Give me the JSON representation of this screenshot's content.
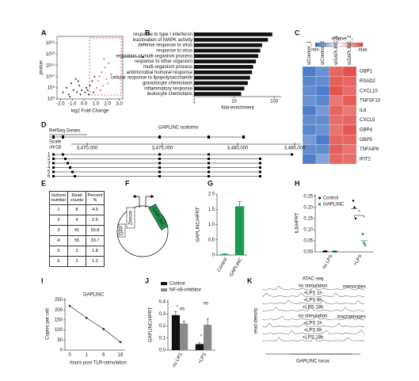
{
  "panel_labels": [
    "A",
    "B",
    "C",
    "D",
    "E",
    "F",
    "G",
    "H",
    "I",
    "J",
    "K"
  ],
  "chart_data": [
    {
      "type": "scatter",
      "xlabel": "log2 Fold-Change",
      "ylabel": "pvalue",
      "log_y": true,
      "xlim": [
        -2.3,
        3.3
      ],
      "xticks": [
        {
          "value": -2,
          "label": "-2.0"
        },
        {
          "value": -1,
          "label": "-1.0"
        },
        {
          "value": 0,
          "label": "0.0"
        },
        {
          "value": 1,
          "label": "1.0"
        },
        {
          "value": 2,
          "label": "2.0"
        },
        {
          "value": 3,
          "label": "3.0"
        }
      ],
      "ylim": [
        1,
        1e+28
      ],
      "yticks": [
        {
          "value": 1,
          "label": "10⁰"
        },
        {
          "value": 100000,
          "label": "10⁵"
        },
        {
          "value": 10000000000.0,
          "label": "10¹⁰"
        },
        {
          "value": 1000000000000000.0,
          "label": "10¹⁵"
        },
        {
          "value": 1e+20,
          "label": "10²⁰"
        },
        {
          "value": 1e+25,
          "label": "10²⁵"
        }
      ],
      "series": [
        {
          "color": "#222222",
          "x": [
            -1.8,
            -1.5,
            -1.3,
            -1.1,
            -0.9,
            -0.7,
            -0.6,
            -0.4,
            -0.3,
            -0.2,
            0.1,
            0.2,
            0.4,
            0.5,
            0.7,
            0.8,
            0.9,
            -1.2,
            -0.5,
            0.3
          ],
          "y": [
            1000,
            100000,
            100,
            10000000.0,
            10000,
            1000000000.0,
            1000,
            1000000.0,
            100,
            10000,
            1000,
            100000,
            100,
            1000000.0,
            100000000.0,
            1000,
            10000000000.0,
            10,
            100000000.0,
            10000
          ]
        },
        {
          "color": "#e0605a",
          "x": [
            1.1,
            1.2,
            1.3,
            1.5,
            1.6,
            1.8,
            1.9,
            2.1,
            2.3,
            1.4,
            1.7,
            2.0
          ],
          "y": [
            100000,
            100000000.0,
            10000000000.0,
            1000000000000.0,
            1000000.0,
            100000000000000.0,
            1000000000.0,
            1e+16,
            100000000000.0,
            10000,
            1e+18,
            10000000.0
          ]
        }
      ]
    },
    {
      "type": "hbar",
      "xlabel": "fold-enrichment",
      "log_x": true,
      "color": "#111111",
      "categories": [
        "response to type I interferon",
        "inactivation of MAPK activity",
        "defense response to virus",
        "response to virus",
        "regulation of multi-organism process",
        "response to other organism",
        "multi-organism process",
        "antimicrobial humoral response",
        "cellular response to lipopolysaccharide",
        "granulocyte chemotaxis",
        "inflammatory response",
        "leukocyte chemotaxis"
      ],
      "values": [
        90,
        70,
        50,
        45,
        40,
        35,
        30,
        28,
        25,
        22,
        18,
        15
      ],
      "xlim": [
        1,
        150
      ],
      "xticks": [
        1,
        10,
        100
      ]
    },
    {
      "type": "heatmap",
      "colorbar_label": "relative",
      "min_label": "min",
      "max_label": "max",
      "colors": [
        "#3b6fc4",
        "#ffffff",
        "#e0403a"
      ],
      "columns": [
        "siControl_1",
        "siControl_2",
        "siGAPLINC_1",
        "siGAPLINC_2"
      ],
      "rows": [
        "GBP1",
        "RSAD2",
        "CXCL10",
        "TNFSF10",
        "IL6",
        "CXCL5",
        "GBP4",
        "GBP5",
        "TNFAIP6",
        "IFIT2"
      ],
      "values": [
        [
          0.05,
          0.12,
          0.9,
          0.95
        ],
        [
          0.08,
          0.1,
          0.92,
          0.9
        ],
        [
          0.1,
          0.05,
          0.95,
          0.88
        ],
        [
          0.12,
          0.08,
          0.85,
          0.92
        ],
        [
          0.05,
          0.15,
          0.9,
          0.85
        ],
        [
          0.1,
          0.1,
          0.88,
          0.9
        ],
        [
          0.08,
          0.12,
          0.86,
          0.94
        ],
        [
          0.15,
          0.05,
          0.9,
          0.9
        ],
        [
          0.1,
          0.1,
          0.92,
          0.86
        ],
        [
          0.05,
          0.18,
          0.9,
          0.88
        ]
      ]
    },
    {
      "type": "bar",
      "ylabel": "GAPLINC/HPRT",
      "color": "#1e9a50",
      "categories": [
        "Control",
        "GAPLINC"
      ],
      "values": [
        0.03,
        1.6
      ],
      "errors": [
        0.01,
        0.15
      ],
      "ylim": [
        0,
        2
      ],
      "yticks": [
        0,
        0.5,
        {
          "value": 1,
          "label": "1.0"
        },
        1.5,
        {
          "value": 2,
          "label": "2.0"
        }
      ]
    },
    {
      "type": "dot",
      "ylabel": "IL6/HPRT",
      "annotation": "*",
      "categories": [
        "no LPS",
        "+LPS"
      ],
      "ylim": [
        0,
        0.26
      ],
      "yticks": [
        {
          "value": 0,
          "label": "0.00"
        },
        {
          "value": 0.05,
          "label": "0.05"
        },
        {
          "value": 0.1,
          "label": "0.10"
        },
        {
          "value": 0.15,
          "label": "0.15"
        },
        {
          "value": 0.2,
          "label": "0.20"
        },
        {
          "value": 0.25,
          "label": "0.25"
        }
      ],
      "series": [
        {
          "name": "Control",
          "color": "#111111",
          "marker": "circle",
          "values": [
            [
              0.002,
              0.003,
              0.002
            ],
            [
              0.23,
              0.2,
              0.15
            ]
          ]
        },
        {
          "name": "GAPLINC",
          "color": "#1a9a7a",
          "marker": "square",
          "values": [
            [
              0.001,
              0.002,
              0.001
            ],
            [
              0.08,
              0.04,
              0.03
            ]
          ]
        }
      ]
    },
    {
      "type": "line",
      "title": "GAPLINC",
      "ylabel": "Copies per cell",
      "xlabel": "hours post TLR-stimulation",
      "color": "#333333",
      "categories": [
        "0",
        "1",
        "6",
        "18"
      ],
      "values": [
        220,
        160,
        105,
        40
      ],
      "ylim": [
        0,
        260
      ],
      "yticks": [
        0,
        50,
        100,
        150,
        200,
        250
      ]
    },
    {
      "type": "grouped_bar",
      "ylabel": "GAPLINC/HPRT",
      "categories": [
        "no LPS",
        "+LPS"
      ],
      "ylim": [
        0,
        0.42
      ],
      "yticks": [
        {
          "value": 0,
          "label": "0.0"
        },
        0.1,
        0.2,
        0.3,
        0.4
      ],
      "annotations": [
        "*",
        "ns",
        "*",
        "ns"
      ],
      "series": [
        {
          "name": "Control",
          "color": "#111111",
          "values": [
            0.29,
            0.05
          ],
          "errors": [
            0.03,
            0.01
          ]
        },
        {
          "name": "NF-κB-inhibitor",
          "color": "#8a8a8a",
          "values": [
            0.22,
            0.21
          ],
          "errors": [
            0.02,
            0.05
          ]
        }
      ]
    }
  ],
  "browser": {
    "track_label": "RefSeq Genes",
    "title": "GAPLINC isoforms",
    "scale_label": "Scale",
    "chromosome": "chr18",
    "coordinates": [
      "3,470,000",
      "3,475,000",
      "3,480,000",
      "3,485,000"
    ],
    "isoforms": [
      "1",
      "2",
      "3",
      "4",
      "5",
      "6"
    ]
  },
  "table": {
    "header": [
      "Isoform number",
      "Read counts",
      "Percent %"
    ],
    "rows": [
      [
        "1",
        "8",
        "4.9"
      ],
      [
        "2",
        "4",
        "2.5"
      ],
      [
        "3",
        "91",
        "55.8"
      ],
      [
        "4",
        "55",
        "33.7"
      ],
      [
        "5",
        "3",
        "1.8"
      ],
      [
        "6",
        "2",
        "1.2"
      ]
    ]
  },
  "plasmid": {
    "labels": [
      "GFP",
      "Zeocin",
      "GAPLINC"
    ]
  },
  "atac": {
    "title": "ATAC-seq",
    "ylabel": "read density",
    "xlabel": "GAPLINC locus",
    "groups": [
      {
        "name": "monocytes",
        "tracks": [
          "no stimulation",
          "+LPS 1h",
          "+LPS 6h",
          "+LPS 18h"
        ]
      },
      {
        "name": "macrophages",
        "tracks": [
          "no stimulation",
          "+LPS 1h",
          "+LPS 6h",
          "+LPS 18h"
        ]
      }
    ]
  }
}
